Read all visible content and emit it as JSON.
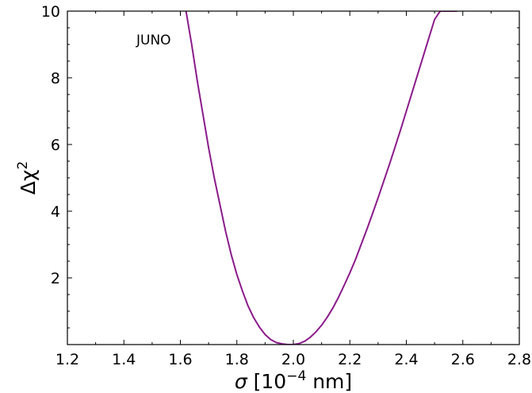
{
  "chart_data": {
    "type": "line",
    "title": "",
    "xlabel_symbol": "σ",
    "xlabel_text": " [10",
    "xlabel_exp": "−4",
    "xlabel_unit": " nm]",
    "ylabel_base": "Δχ",
    "ylabel_exp": "2",
    "annotation": "JUNO",
    "xlim": [
      1.2,
      2.8
    ],
    "ylim": [
      0,
      10
    ],
    "xticks": [
      "1.2",
      "1.4",
      "1.6",
      "1.8",
      "2.0",
      "2.2",
      "2.4",
      "2.6",
      "2.8"
    ],
    "yticks": [
      "2",
      "4",
      "6",
      "8",
      "10"
    ],
    "grid": false,
    "color": "#8B1A8B",
    "series": [
      {
        "x": [
          1.62,
          1.64,
          1.66,
          1.68,
          1.7,
          1.72,
          1.74,
          1.76,
          1.78,
          1.8,
          1.82,
          1.84,
          1.86,
          1.88,
          1.9,
          1.92,
          1.94,
          1.96,
          1.98,
          2.0,
          2.02,
          2.04,
          2.06,
          2.08,
          2.1,
          2.12,
          2.14,
          2.16,
          2.18,
          2.2,
          2.22,
          2.24,
          2.26,
          2.28,
          2.3,
          2.32,
          2.34,
          2.36,
          2.38,
          2.4,
          2.42,
          2.44,
          2.46,
          2.48,
          2.5,
          2.52,
          2.54,
          2.56,
          2.58
        ],
        "y": [
          10.0,
          9.0,
          7.9,
          6.9,
          5.9,
          5.0,
          4.2,
          3.4,
          2.7,
          2.1,
          1.6,
          1.15,
          0.8,
          0.52,
          0.3,
          0.15,
          0.06,
          0.02,
          0.0,
          0.0,
          0.03,
          0.1,
          0.22,
          0.38,
          0.58,
          0.82,
          1.1,
          1.42,
          1.78,
          2.15,
          2.55,
          3.0,
          3.45,
          3.92,
          4.4,
          4.9,
          5.4,
          5.92,
          6.45,
          7.0,
          7.55,
          8.1,
          8.65,
          9.2,
          9.75,
          10.0,
          10.0,
          10.0,
          10.0
        ]
      }
    ]
  }
}
